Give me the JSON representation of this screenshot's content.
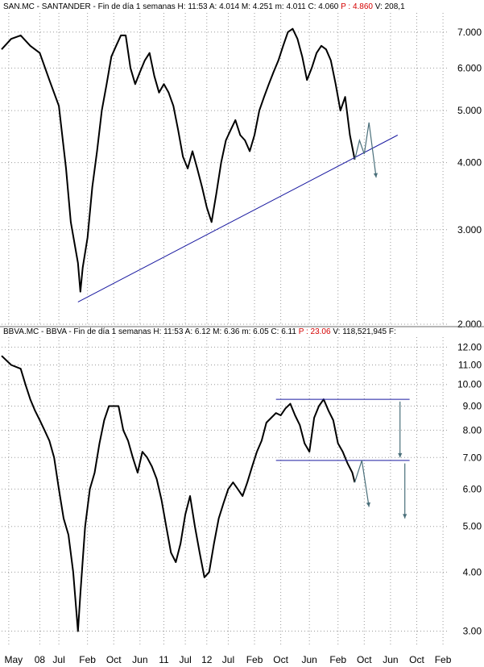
{
  "chart_data": [
    {
      "type": "line",
      "header": {
        "prefix": "SAN.MC - SANTANDER - Fin de día 1 semanas",
        "fields": [
          {
            "label": "H:",
            "value": "11:53",
            "color": "#000000"
          },
          {
            "label": "A:",
            "value": "4.014",
            "color": "#000000"
          },
          {
            "label": "M:",
            "value": "4.251",
            "color": "#000000"
          },
          {
            "label": "m:",
            "value": "4.011",
            "color": "#000000"
          },
          {
            "label": "C:",
            "value": "4.060",
            "color": "#000000"
          },
          {
            "label": "P :",
            "value": "4.860",
            "color": "#d40000"
          },
          {
            "label": "V:",
            "value": "208,1",
            "color": "#000000"
          }
        ]
      },
      "y_scale": "log",
      "ylim": [
        2.0,
        7.6
      ],
      "yticks": [
        {
          "value": 2.0,
          "label": "2.000"
        },
        {
          "value": 3.0,
          "label": "3.000"
        },
        {
          "value": 4.0,
          "label": "4.000"
        },
        {
          "value": 5.0,
          "label": "5.000"
        },
        {
          "value": 6.0,
          "label": "6.000"
        },
        {
          "value": 7.0,
          "label": "7.000"
        }
      ],
      "series": [
        {
          "color": "#000000",
          "points": [
            [
              0,
              6.5
            ],
            [
              4,
              6.8
            ],
            [
              8,
              6.9
            ],
            [
              12,
              6.6
            ],
            [
              16,
              6.4
            ],
            [
              20,
              5.7
            ],
            [
              24,
              5.1
            ],
            [
              27,
              3.9
            ],
            [
              29,
              3.1
            ],
            [
              32,
              2.6
            ],
            [
              33,
              2.3
            ],
            [
              34,
              2.55
            ],
            [
              36,
              2.9
            ],
            [
              38,
              3.6
            ],
            [
              40,
              4.2
            ],
            [
              42,
              5.0
            ],
            [
              44,
              5.6
            ],
            [
              46,
              6.3
            ],
            [
              48,
              6.6
            ],
            [
              50,
              6.9
            ],
            [
              52,
              6.9
            ],
            [
              54,
              6.0
            ],
            [
              56,
              5.6
            ],
            [
              58,
              5.9
            ],
            [
              60,
              6.2
            ],
            [
              62,
              6.4
            ],
            [
              64,
              5.8
            ],
            [
              66,
              5.4
            ],
            [
              68,
              5.6
            ],
            [
              70,
              5.4
            ],
            [
              72,
              5.1
            ],
            [
              74,
              4.6
            ],
            [
              76,
              4.1
            ],
            [
              78,
              3.9
            ],
            [
              80,
              4.2
            ],
            [
              82,
              3.9
            ],
            [
              84,
              3.6
            ],
            [
              86,
              3.3
            ],
            [
              88,
              3.1
            ],
            [
              90,
              3.5
            ],
            [
              92,
              4.0
            ],
            [
              94,
              4.4
            ],
            [
              96,
              4.6
            ],
            [
              98,
              4.8
            ],
            [
              100,
              4.5
            ],
            [
              102,
              4.4
            ],
            [
              104,
              4.2
            ],
            [
              106,
              4.5
            ],
            [
              108,
              5.0
            ],
            [
              110,
              5.3
            ],
            [
              112,
              5.6
            ],
            [
              114,
              5.9
            ],
            [
              116,
              6.2
            ],
            [
              118,
              6.6
            ],
            [
              120,
              7.0
            ],
            [
              122,
              7.1
            ],
            [
              124,
              6.8
            ],
            [
              126,
              6.3
            ],
            [
              128,
              5.7
            ],
            [
              130,
              6.0
            ],
            [
              132,
              6.4
            ],
            [
              134,
              6.6
            ],
            [
              136,
              6.5
            ],
            [
              138,
              6.2
            ],
            [
              140,
              5.6
            ],
            [
              142,
              5.0
            ],
            [
              144,
              5.3
            ],
            [
              146,
              4.5
            ],
            [
              148,
              4.05
            ]
          ]
        },
        {
          "color": "#1a1aa0",
          "points": [
            [
              32,
              2.2
            ],
            [
              166,
              4.5
            ]
          ]
        }
      ],
      "annotations": [
        {
          "type": "arrow-path",
          "color": "#4a6f7a",
          "points": [
            [
              148,
              4.05
            ],
            [
              150,
              4.4
            ],
            [
              152,
              4.15
            ],
            [
              154,
              4.75
            ],
            [
              157,
              3.75
            ]
          ]
        }
      ]
    },
    {
      "type": "line",
      "header": {
        "prefix": "BBVA.MC - BBVA - Fin de día 1 semanas",
        "fields": [
          {
            "label": "H:",
            "value": "11:53",
            "color": "#000000"
          },
          {
            "label": "A:",
            "value": "6.12",
            "color": "#000000"
          },
          {
            "label": "M:",
            "value": "6.36",
            "color": "#000000"
          },
          {
            "label": "m:",
            "value": "6.05",
            "color": "#000000"
          },
          {
            "label": "C:",
            "value": "6.11",
            "color": "#000000"
          },
          {
            "label": "P :",
            "value": "23.06",
            "color": "#d40000"
          },
          {
            "label": "V:",
            "value": "118,521,945",
            "color": "#000000"
          },
          {
            "label": "F:",
            "value": "",
            "color": "#000000"
          }
        ]
      },
      "y_scale": "log",
      "ylim": [
        2.8,
        12.6
      ],
      "yticks": [
        {
          "value": 3.0,
          "label": "3.00"
        },
        {
          "value": 4.0,
          "label": "4.00"
        },
        {
          "value": 5.0,
          "label": "5.00"
        },
        {
          "value": 6.0,
          "label": "6.00"
        },
        {
          "value": 7.0,
          "label": "7.00"
        },
        {
          "value": 8.0,
          "label": "8.00"
        },
        {
          "value": 9.0,
          "label": "9.00"
        },
        {
          "value": 10.0,
          "label": "10.00"
        },
        {
          "value": 11.0,
          "label": "11.00"
        },
        {
          "value": 12.0,
          "label": "12.00"
        }
      ],
      "series": [
        {
          "color": "#000000",
          "points": [
            [
              0,
              11.5
            ],
            [
              4,
              11.0
            ],
            [
              8,
              10.8
            ],
            [
              10,
              10.0
            ],
            [
              12,
              9.3
            ],
            [
              14,
              8.8
            ],
            [
              16,
              8.4
            ],
            [
              18,
              8.0
            ],
            [
              20,
              7.6
            ],
            [
              22,
              7.0
            ],
            [
              24,
              6.0
            ],
            [
              26,
              5.2
            ],
            [
              28,
              4.8
            ],
            [
              30,
              4.0
            ],
            [
              32,
              3.0
            ],
            [
              33,
              3.6
            ],
            [
              35,
              5.0
            ],
            [
              37,
              6.0
            ],
            [
              39,
              6.5
            ],
            [
              41,
              7.5
            ],
            [
              43,
              8.4
            ],
            [
              45,
              9.0
            ],
            [
              47,
              9.0
            ],
            [
              49,
              9.0
            ],
            [
              51,
              8.0
            ],
            [
              53,
              7.6
            ],
            [
              55,
              7.0
            ],
            [
              57,
              6.5
            ],
            [
              59,
              7.2
            ],
            [
              61,
              7.0
            ],
            [
              63,
              6.7
            ],
            [
              65,
              6.3
            ],
            [
              67,
              5.7
            ],
            [
              69,
              5.0
            ],
            [
              71,
              4.4
            ],
            [
              73,
              4.2
            ],
            [
              75,
              4.6
            ],
            [
              77,
              5.3
            ],
            [
              79,
              5.8
            ],
            [
              81,
              5.0
            ],
            [
              83,
              4.4
            ],
            [
              85,
              3.9
            ],
            [
              87,
              4.0
            ],
            [
              89,
              4.6
            ],
            [
              91,
              5.2
            ],
            [
              93,
              5.6
            ],
            [
              95,
              6.0
            ],
            [
              97,
              6.2
            ],
            [
              99,
              6.0
            ],
            [
              101,
              5.8
            ],
            [
              103,
              6.2
            ],
            [
              105,
              6.7
            ],
            [
              107,
              7.2
            ],
            [
              109,
              7.6
            ],
            [
              111,
              8.3
            ],
            [
              113,
              8.5
            ],
            [
              115,
              8.7
            ],
            [
              117,
              8.6
            ],
            [
              119,
              8.9
            ],
            [
              121,
              9.1
            ],
            [
              123,
              8.6
            ],
            [
              125,
              8.2
            ],
            [
              127,
              7.5
            ],
            [
              129,
              7.2
            ],
            [
              131,
              8.5
            ],
            [
              133,
              9.0
            ],
            [
              135,
              9.3
            ],
            [
              137,
              8.8
            ],
            [
              139,
              8.4
            ],
            [
              141,
              7.5
            ],
            [
              143,
              7.2
            ],
            [
              145,
              6.8
            ],
            [
              147,
              6.5
            ],
            [
              148,
              6.2
            ]
          ]
        },
        {
          "color": "#1a1aa0",
          "points": [
            [
              115,
              9.3
            ],
            [
              171,
              9.3
            ]
          ]
        },
        {
          "color": "#1a1aa0",
          "points": [
            [
              115,
              6.9
            ],
            [
              171,
              6.9
            ]
          ]
        }
      ],
      "annotations": [
        {
          "type": "arrow-path",
          "color": "#4a6f7a",
          "points": [
            [
              148,
              6.2
            ],
            [
              151,
              6.9
            ],
            [
              154,
              5.5
            ]
          ]
        },
        {
          "type": "arrow-path",
          "color": "#4a6f7a",
          "points": [
            [
              167,
              9.2
            ],
            [
              167,
              7.0
            ]
          ]
        },
        {
          "type": "arrow-path",
          "color": "#4a6f7a",
          "points": [
            [
              169,
              6.8
            ],
            [
              169,
              5.2
            ]
          ]
        }
      ]
    }
  ],
  "x_axis": {
    "range": [
      0,
      187
    ],
    "ticks": [
      {
        "value": 3,
        "label": "May",
        "label_value": 5
      },
      {
        "value": 16,
        "label": "08",
        "label_value": 16
      },
      {
        "value": 24,
        "label": "Jul",
        "label_value": 24
      },
      {
        "value": 36,
        "label": "Feb",
        "label_value": 36
      },
      {
        "value": 47,
        "label": "Oct",
        "label_value": 47
      },
      {
        "value": 58,
        "label": "Jun",
        "label_value": 58
      },
      {
        "value": 68,
        "label": "11",
        "label_value": 68
      },
      {
        "value": 77,
        "label": "Jul",
        "label_value": 77
      },
      {
        "value": 86,
        "label": "12",
        "label_value": 86
      },
      {
        "value": 95,
        "label": "Jul",
        "label_value": 95
      },
      {
        "value": 106,
        "label": "Feb",
        "label_value": 106
      },
      {
        "value": 117,
        "label": "Oct",
        "label_value": 117
      },
      {
        "value": 129,
        "label": "Jun",
        "label_value": 129
      },
      {
        "value": 141,
        "label": "Feb",
        "label_value": 141
      },
      {
        "value": 152,
        "label": "Oct",
        "label_value": 152
      },
      {
        "value": 163,
        "label": "Jun",
        "label_value": 163
      },
      {
        "value": 174,
        "label": "Oct",
        "label_value": 174
      },
      {
        "value": 185,
        "label": "Feb",
        "label_value": 185
      }
    ]
  }
}
